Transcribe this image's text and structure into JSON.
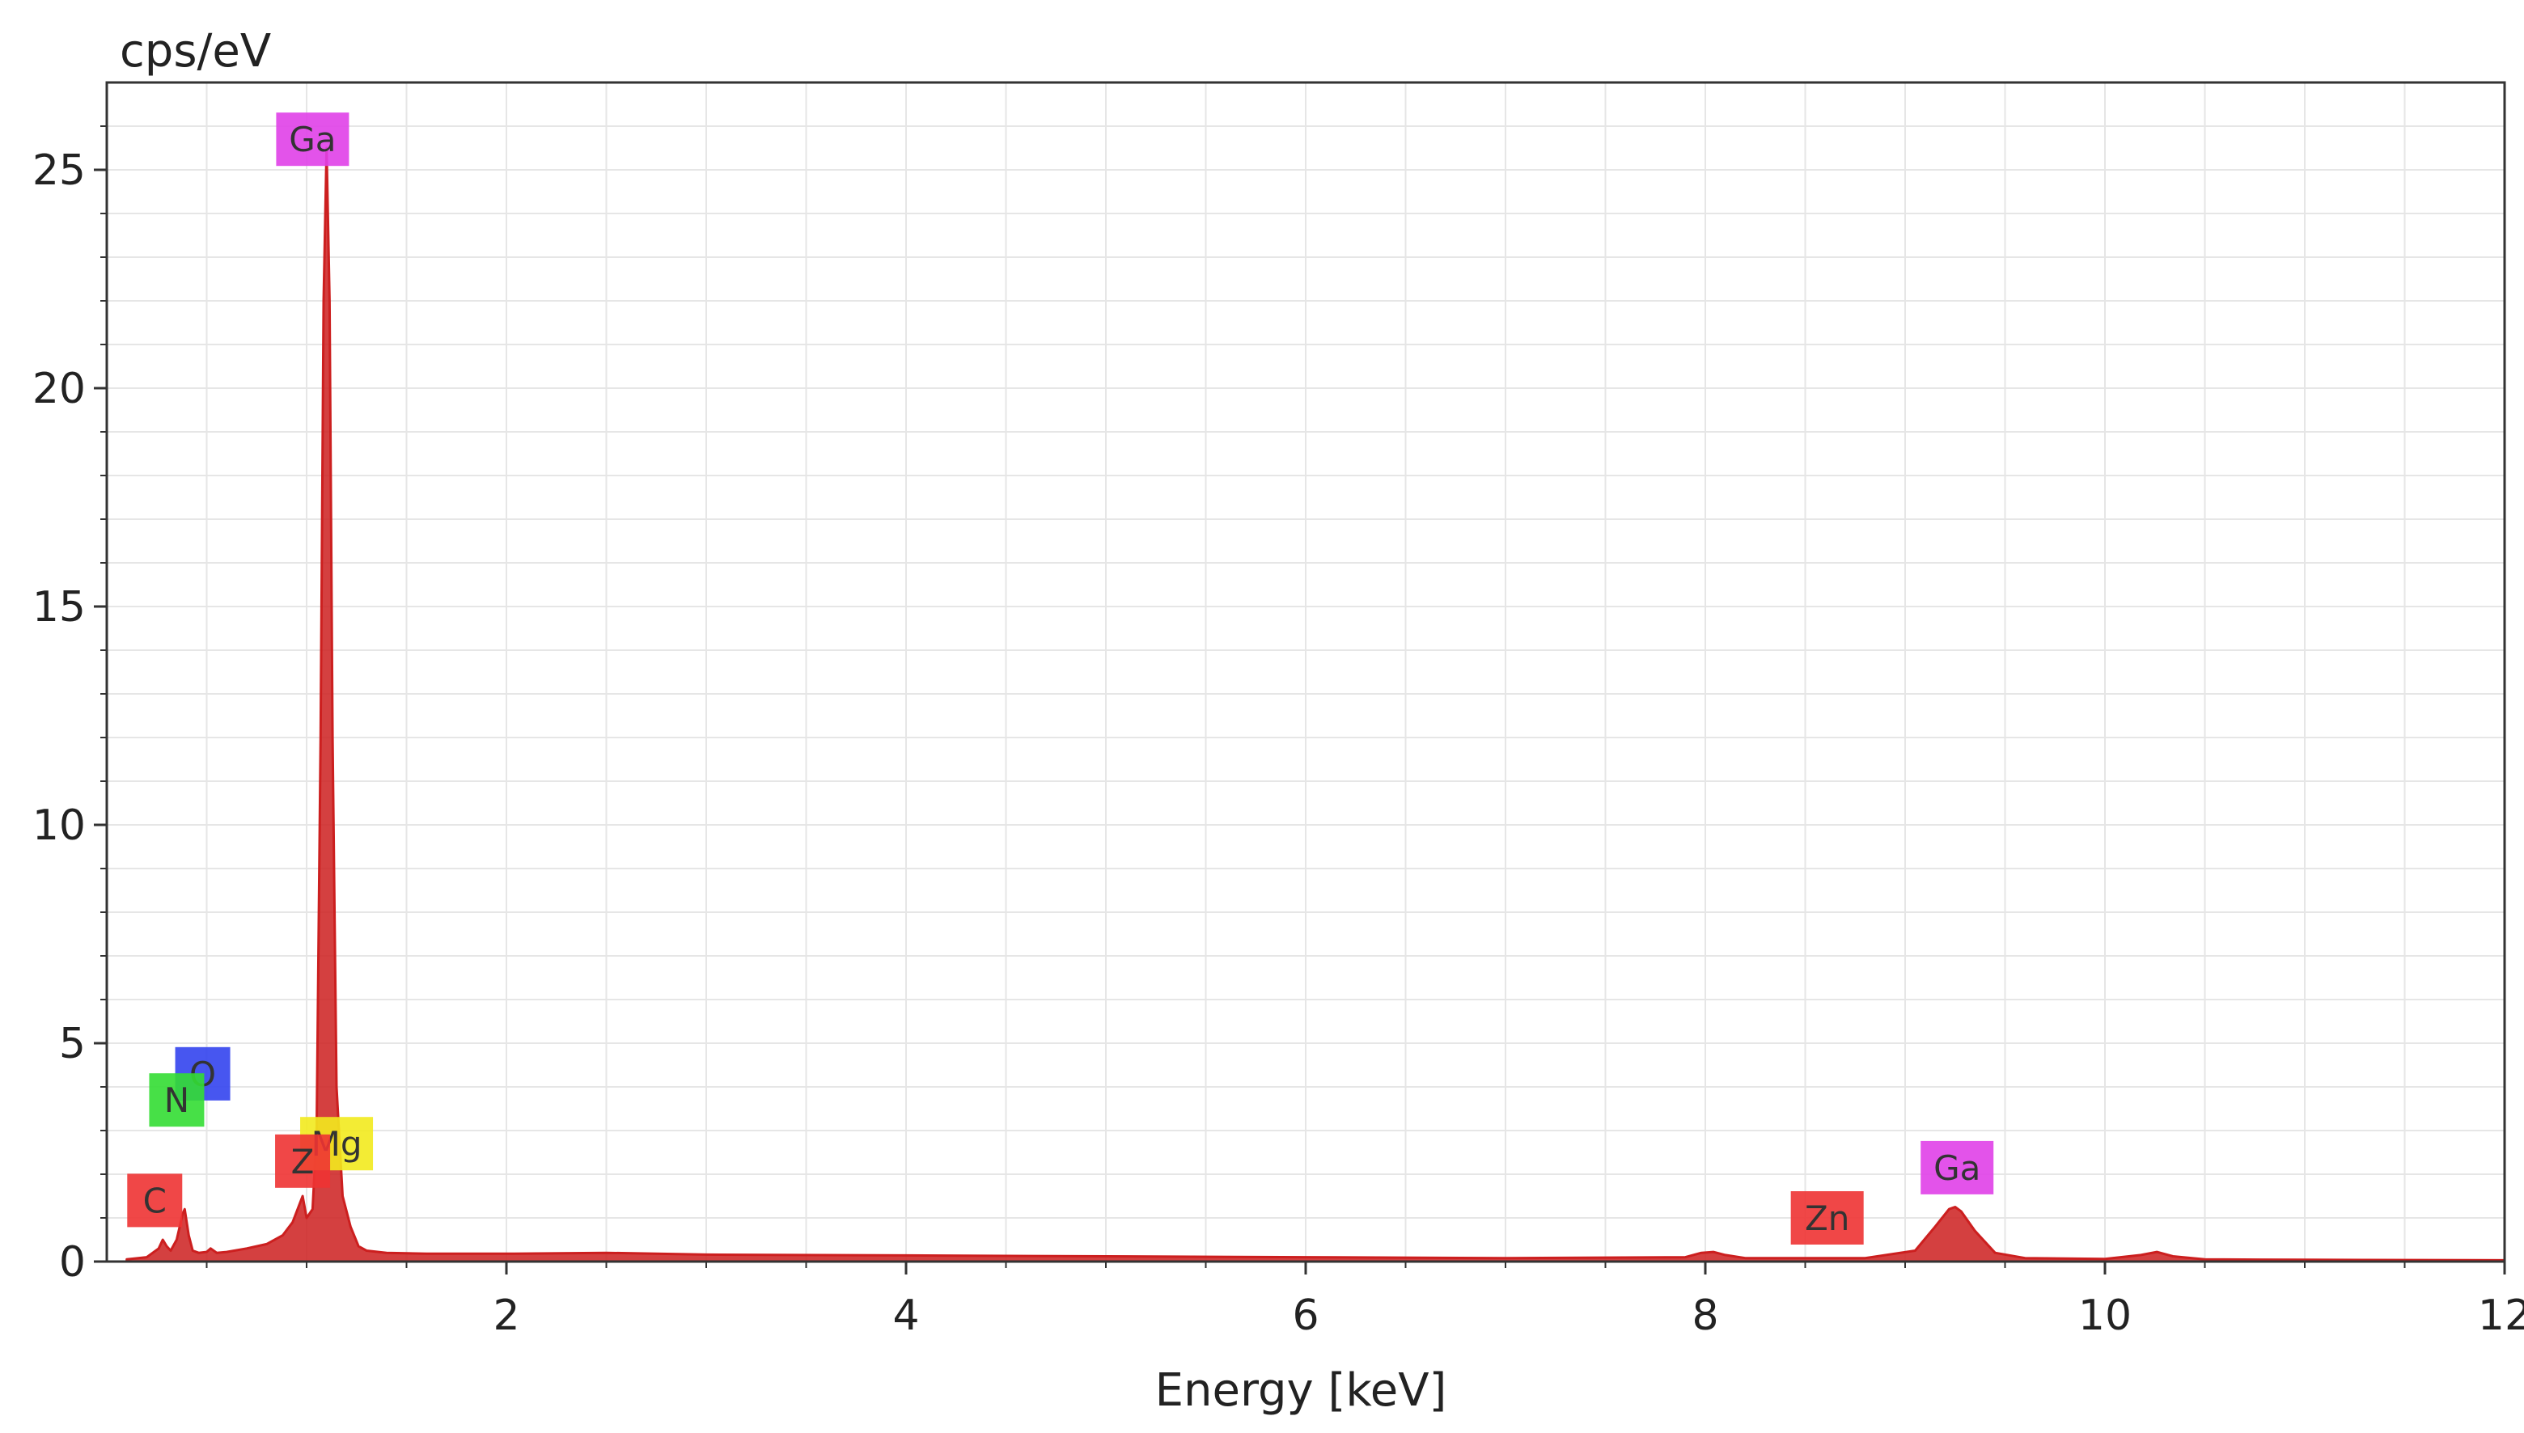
{
  "chart_data": {
    "type": "line",
    "xlabel": "Energy [keV]",
    "ylabel": "cps/eV",
    "xlim": [
      0,
      12
    ],
    "ylim": [
      0,
      27
    ],
    "x_ticks": [
      2,
      4,
      6,
      8,
      10,
      12
    ],
    "y_ticks": [
      0,
      5,
      10,
      15,
      20,
      25
    ],
    "grid": true,
    "series": [
      {
        "color": "#cc1f1f",
        "x": [
          0.1,
          0.2,
          0.26,
          0.28,
          0.3,
          0.32,
          0.35,
          0.38,
          0.39,
          0.41,
          0.43,
          0.46,
          0.5,
          0.52,
          0.55,
          0.6,
          0.7,
          0.8,
          0.88,
          0.93,
          0.98,
          1.0,
          1.03,
          1.05,
          1.07,
          1.085,
          1.1,
          1.115,
          1.13,
          1.15,
          1.18,
          1.22,
          1.26,
          1.3,
          1.4,
          1.6,
          2.0,
          2.5,
          3.0,
          4.0,
          5.0,
          6.0,
          7.0,
          7.9,
          7.98,
          8.04,
          8.1,
          8.2,
          8.8,
          9.05,
          9.15,
          9.22,
          9.25,
          9.28,
          9.35,
          9.45,
          9.6,
          10.0,
          10.18,
          10.26,
          10.34,
          10.5,
          11.0,
          12.0
        ],
        "y": [
          0.05,
          0.1,
          0.3,
          0.5,
          0.35,
          0.25,
          0.5,
          1.1,
          1.2,
          0.6,
          0.25,
          0.2,
          0.22,
          0.3,
          0.2,
          0.22,
          0.3,
          0.4,
          0.6,
          0.9,
          1.5,
          1.0,
          1.2,
          3.0,
          12.0,
          22.0,
          25.5,
          22.0,
          12.0,
          4.0,
          1.5,
          0.8,
          0.35,
          0.25,
          0.2,
          0.18,
          0.18,
          0.2,
          0.16,
          0.14,
          0.12,
          0.1,
          0.08,
          0.1,
          0.2,
          0.22,
          0.15,
          0.08,
          0.08,
          0.25,
          0.8,
          1.2,
          1.25,
          1.15,
          0.7,
          0.2,
          0.08,
          0.06,
          0.15,
          0.22,
          0.12,
          0.05,
          0.04,
          0.03
        ]
      }
    ],
    "element_markers": [
      {
        "label": "Ga",
        "color": "#e040e8",
        "x": 1.03,
        "y": 25.7
      },
      {
        "label": "O",
        "color": "#3344ee",
        "x": 0.48,
        "y": 4.3
      },
      {
        "label": "N",
        "color": "#33dd33",
        "x": 0.35,
        "y": 3.7
      },
      {
        "label": "Mg",
        "color": "#f2ea1e",
        "x": 1.15,
        "y": 2.7
      },
      {
        "label": "Z",
        "color": "#ee3333",
        "x": 0.98,
        "y": 2.3
      },
      {
        "label": "C",
        "color": "#ee3333",
        "x": 0.24,
        "y": 1.4
      },
      {
        "label": "Ga",
        "color": "#e040e8",
        "x": 9.26,
        "y": 2.15
      },
      {
        "label": "Zn",
        "color": "#ee3333",
        "x": 8.61,
        "y": 1.0
      }
    ]
  }
}
